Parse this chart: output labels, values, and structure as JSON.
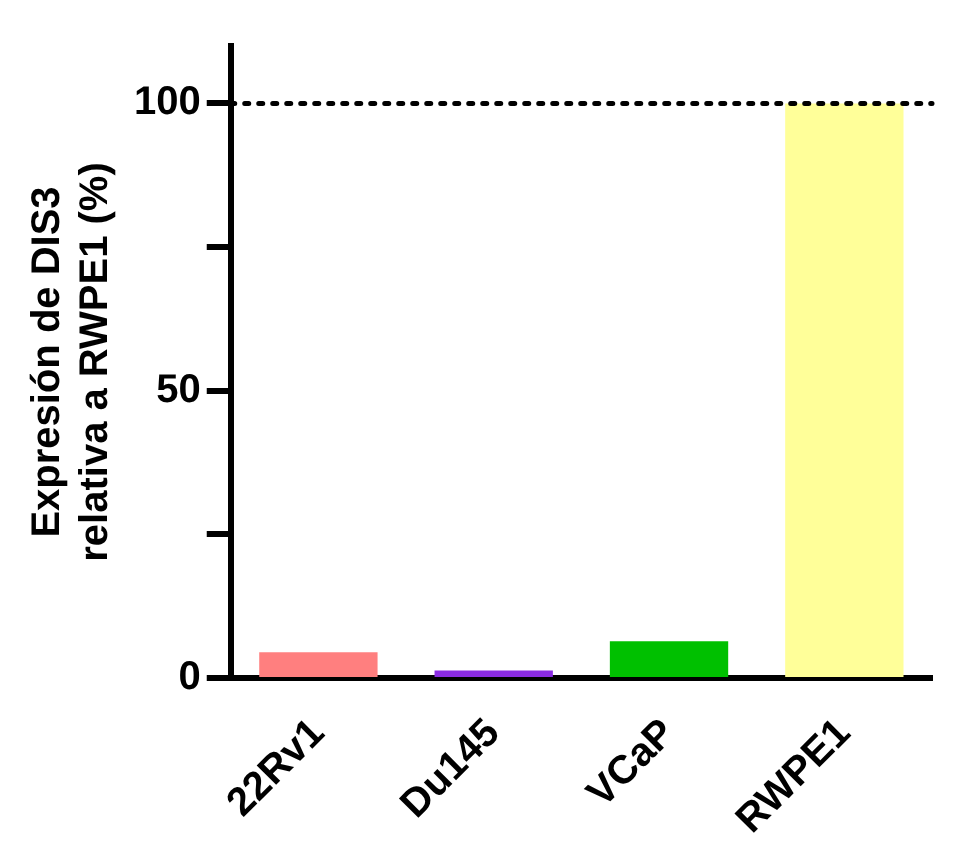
{
  "chart_data": {
    "type": "bar",
    "ylabel": "Expresión de DIS3\nrelativa a RWPE1 (%)",
    "categories": [
      "22Rv1",
      "Du145",
      "VCaP",
      "RWPE1"
    ],
    "values": [
      4.5,
      1.3,
      6.4,
      100
    ],
    "colors": [
      "#ff7f7f",
      "#8a2be2",
      "#00c000",
      "#ffff99"
    ],
    "ylim": [
      0,
      110
    ],
    "yticks": [
      0,
      {
        "value": 25,
        "label": null
      },
      50,
      {
        "value": 75,
        "label": null
      },
      100
    ],
    "ref_lines": [
      {
        "axis": "y",
        "value": 100,
        "line_style": "dotted",
        "color": "#000000"
      }
    ],
    "grid": false,
    "legend": false
  }
}
